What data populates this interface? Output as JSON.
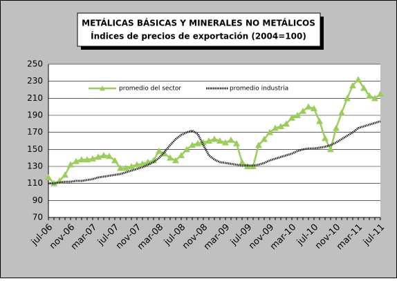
{
  "chart_data": {
    "type": "line",
    "title": "METÁLICAS BÁSICAS Y MINERALES NO METÁLICOS",
    "subtitle": "Índices de precios de exportación (2004=100)",
    "categories": [
      "jul-06",
      null,
      null,
      null,
      "nov-06",
      null,
      null,
      null,
      "mar-07",
      null,
      null,
      null,
      "jul-07",
      null,
      null,
      null,
      "nov-07",
      null,
      null,
      null,
      "mar-08",
      null,
      null,
      null,
      "jul-08",
      null,
      null,
      null,
      "nov-08",
      null,
      null,
      null,
      "mar-09",
      null,
      null,
      null,
      "jul-09",
      null,
      null,
      null,
      "nov-09",
      null,
      null,
      null,
      "mar-10",
      null,
      null,
      null,
      "jul-10",
      null,
      null,
      null,
      "nov-10",
      null,
      null,
      null,
      "mar-11",
      null,
      null,
      null,
      "jul-11"
    ],
    "series": [
      {
        "name": "promedio del sector",
        "color": "#9acd5a",
        "values": [
          117,
          110,
          113,
          120,
          132,
          136,
          138,
          138,
          139,
          141,
          143,
          142,
          137,
          128,
          128,
          130,
          132,
          133,
          135,
          137,
          148,
          145,
          140,
          137,
          143,
          150,
          155,
          157,
          158,
          160,
          162,
          160,
          158,
          161,
          157,
          135,
          130,
          130,
          155,
          162,
          170,
          175,
          177,
          180,
          187,
          190,
          195,
          200,
          198,
          183,
          163,
          150,
          175,
          193,
          210,
          225,
          232,
          222,
          213,
          210,
          215
        ]
      },
      {
        "name": "promedio industria",
        "color": "#222222",
        "values": [
          110,
          110,
          111,
          112,
          112,
          113,
          113,
          114,
          115,
          117,
          118,
          119,
          120,
          121,
          123,
          125,
          127,
          129,
          132,
          135,
          140,
          147,
          155,
          162,
          167,
          170,
          172,
          168,
          155,
          143,
          138,
          135,
          134,
          133,
          132,
          131,
          131,
          131,
          132,
          134,
          137,
          139,
          141,
          143,
          145,
          148,
          150,
          151,
          151,
          152,
          153,
          155,
          158,
          162,
          166,
          170,
          175,
          177,
          179,
          181,
          183
        ]
      }
    ],
    "ylim": [
      70,
      250
    ],
    "yticks": [
      70,
      90,
      110,
      130,
      150,
      170,
      190,
      210,
      230,
      250
    ],
    "grid": true
  }
}
